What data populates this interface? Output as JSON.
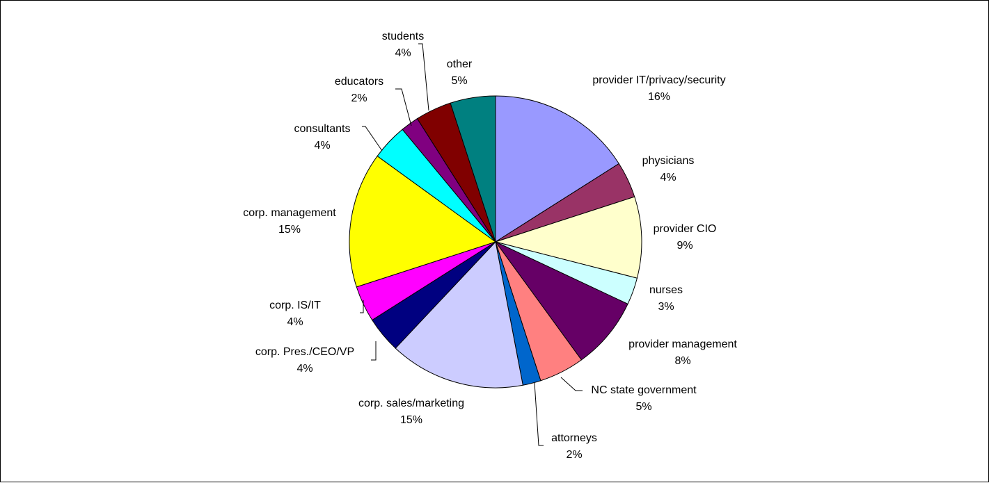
{
  "chart_data": {
    "type": "pie",
    "title": "",
    "start_angle_deg": 0,
    "direction": "clockwise",
    "legend": "none",
    "slices": [
      {
        "name": "provider IT/privacy/security",
        "value": 16,
        "label": "16%",
        "color": "#9999FF"
      },
      {
        "name": "physicians",
        "value": 4,
        "label": "4%",
        "color": "#993366"
      },
      {
        "name": "provider CIO",
        "value": 9,
        "label": "9%",
        "color": "#FFFFCC"
      },
      {
        "name": "nurses",
        "value": 3,
        "label": "3%",
        "color": "#CCFFFF"
      },
      {
        "name": "provider management",
        "value": 8,
        "label": "8%",
        "color": "#660066"
      },
      {
        "name": "NC state government",
        "value": 5,
        "label": "5%",
        "color": "#FF8080"
      },
      {
        "name": "attorneys",
        "value": 2,
        "label": "2%",
        "color": "#0066CC"
      },
      {
        "name": "corp. sales/marketing",
        "value": 15,
        "label": "15%",
        "color": "#CCCCFF"
      },
      {
        "name": "corp. Pres./CEO/VP",
        "value": 4,
        "label": "4%",
        "color": "#000080"
      },
      {
        "name": "corp. IS/IT",
        "value": 4,
        "label": "4%",
        "color": "#FF00FF"
      },
      {
        "name": "corp. management",
        "value": 15,
        "label": "15%",
        "color": "#FFFF00"
      },
      {
        "name": "consultants",
        "value": 4,
        "label": "4%",
        "color": "#00FFFF"
      },
      {
        "name": "educators",
        "value": 2,
        "label": "2%",
        "color": "#800080"
      },
      {
        "name": "students",
        "value": 4,
        "label": "4%",
        "color": "#800000"
      },
      {
        "name": "other",
        "value": 5,
        "label": "5%",
        "color": "#008080"
      }
    ]
  }
}
